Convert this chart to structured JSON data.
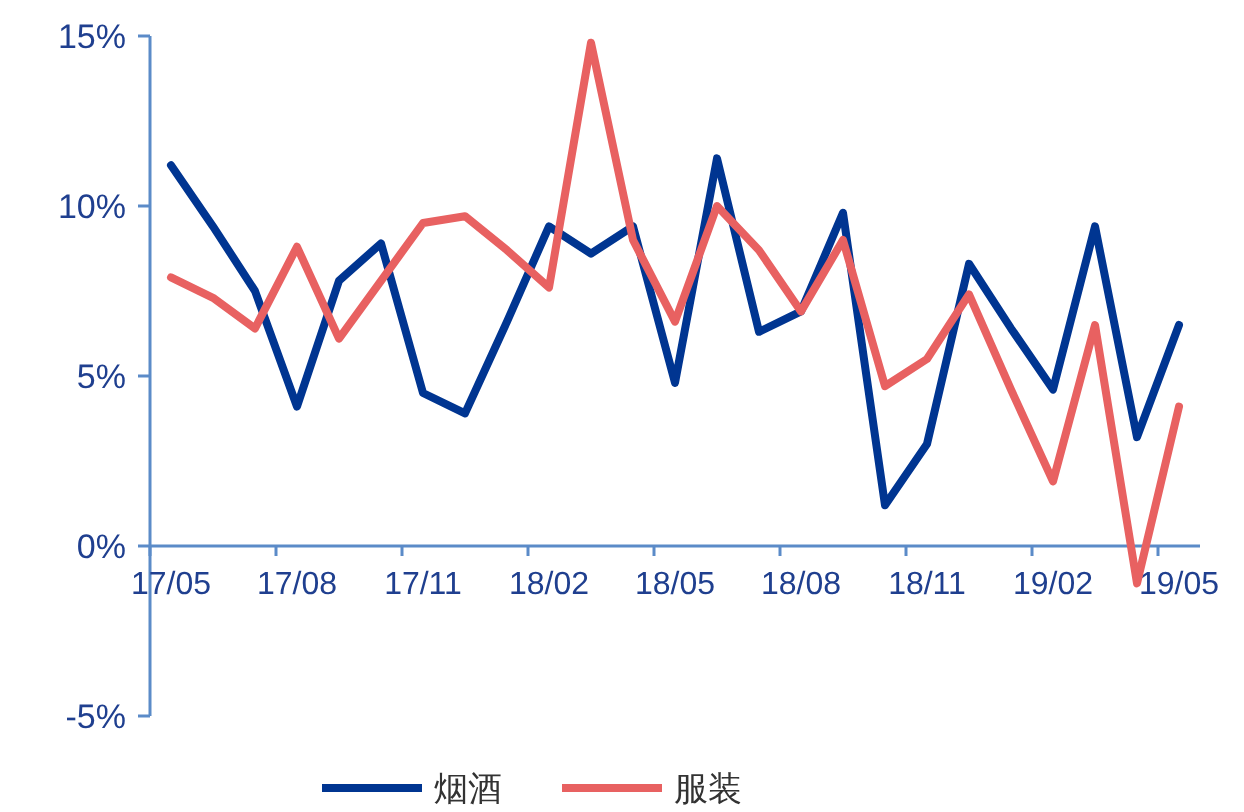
{
  "chart_data": {
    "type": "line",
    "categories": [
      "17/05",
      null,
      null,
      "17/08",
      null,
      null,
      "17/11",
      null,
      null,
      "18/02",
      null,
      null,
      "18/05",
      null,
      null,
      "18/08",
      null,
      null,
      "18/11",
      null,
      null,
      "19/02",
      null,
      null,
      "19/05"
    ],
    "ylim": [
      -5,
      15
    ],
    "yticks": [
      {
        "value": -5,
        "label": "-5%"
      },
      {
        "value": 0,
        "label": "0%"
      },
      {
        "value": 5,
        "label": "5%"
      },
      {
        "value": 10,
        "label": "10%"
      },
      {
        "value": 15,
        "label": "15%"
      }
    ],
    "grid": false,
    "legend": "bottom",
    "marker": "none",
    "line_style": "solid",
    "series": [
      {
        "name": "烟酒",
        "color": "#003591",
        "values": [
          11.2,
          9.4,
          7.5,
          4.1,
          7.8,
          8.9,
          4.5,
          3.9,
          6.6,
          9.4,
          8.6,
          9.4,
          4.8,
          11.4,
          6.3,
          6.9,
          9.8,
          1.2,
          3.0,
          8.3,
          6.4,
          4.6,
          9.4,
          3.2,
          6.5
        ]
      },
      {
        "name": "服装",
        "color": "#e86161",
        "values": [
          7.9,
          7.3,
          6.4,
          8.8,
          6.1,
          7.8,
          9.5,
          9.7,
          8.7,
          7.6,
          14.8,
          9.0,
          6.6,
          10.0,
          8.7,
          6.9,
          9.0,
          4.7,
          5.5,
          7.4,
          4.6,
          1.9,
          6.5,
          -1.1,
          4.1
        ]
      }
    ]
  }
}
